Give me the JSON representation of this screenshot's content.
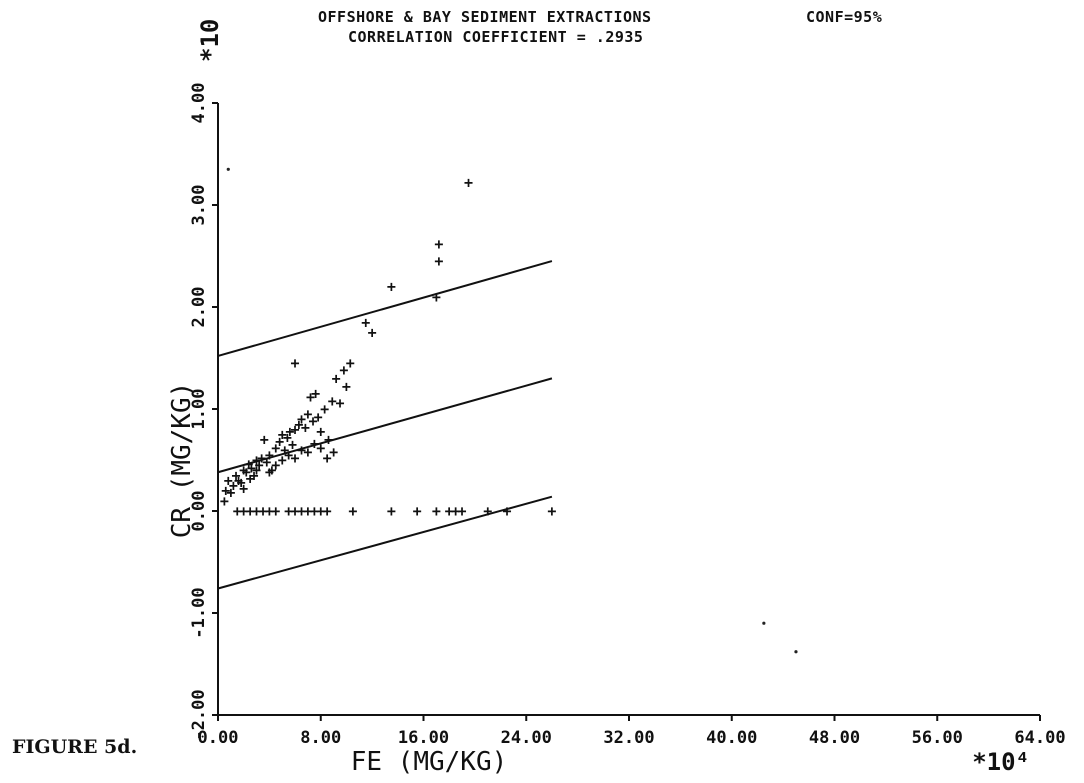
{
  "chart_data": {
    "type": "scatter",
    "title": "OFFSHORE & BAY  SEDIMENT EXTRACTIONS",
    "conf_label": "CONF=95%",
    "subtitle": "CORRELATION COEFFICIENT =  .2935",
    "xlabel": "FE (MG/KG)",
    "ylabel": "CR (MG/KG)",
    "x_multiplier": "*10⁴",
    "y_multiplier": "*10",
    "xlim": [
      0,
      64
    ],
    "ylim": [
      -2,
      4
    ],
    "x_ticks": [
      0,
      8,
      16,
      24,
      32,
      40,
      48,
      56,
      64
    ],
    "x_tick_labels": [
      "0.00",
      "8.00",
      "16.00",
      "24.00",
      "32.00",
      "40.00",
      "48.00",
      "56.00",
      "64.00"
    ],
    "y_ticks": [
      -2,
      -1,
      0,
      1,
      2,
      3,
      4
    ],
    "y_tick_labels": [
      "-2.00",
      "-1.00",
      "0.00",
      "1.00",
      "2.00",
      "3.00",
      "4.00"
    ],
    "grid": false,
    "lines": [
      {
        "name": "upper 95% limit",
        "x": [
          0,
          26
        ],
        "y": [
          1.52,
          2.45
        ]
      },
      {
        "name": "regression",
        "x": [
          0,
          26
        ],
        "y": [
          0.38,
          1.3
        ]
      },
      {
        "name": "lower 95% limit",
        "x": [
          0,
          26
        ],
        "y": [
          -0.76,
          0.14
        ]
      }
    ],
    "points": [
      [
        0.5,
        0.1
      ],
      [
        0.6,
        0.2
      ],
      [
        0.8,
        0.3
      ],
      [
        1.0,
        0.18
      ],
      [
        1.2,
        0.25
      ],
      [
        1.4,
        0.35
      ],
      [
        1.6,
        0.3
      ],
      [
        1.8,
        0.28
      ],
      [
        2.0,
        0.4
      ],
      [
        2.2,
        0.38
      ],
      [
        2.4,
        0.46
      ],
      [
        2.6,
        0.42
      ],
      [
        2.8,
        0.35
      ],
      [
        3.0,
        0.5
      ],
      [
        3.2,
        0.45
      ],
      [
        3.4,
        0.52
      ],
      [
        3.6,
        0.7
      ],
      [
        3.8,
        0.48
      ],
      [
        4.0,
        0.55
      ],
      [
        4.2,
        0.4
      ],
      [
        4.5,
        0.62
      ],
      [
        4.8,
        0.68
      ],
      [
        5.0,
        0.75
      ],
      [
        5.2,
        0.6
      ],
      [
        5.4,
        0.72
      ],
      [
        5.6,
        0.78
      ],
      [
        5.8,
        0.65
      ],
      [
        6.0,
        0.8
      ],
      [
        6.3,
        0.85
      ],
      [
        6.5,
        0.9
      ],
      [
        6.8,
        0.82
      ],
      [
        7.0,
        0.95
      ],
      [
        7.2,
        1.12
      ],
      [
        7.4,
        0.88
      ],
      [
        7.6,
        1.15
      ],
      [
        7.8,
        0.92
      ],
      [
        8.0,
        0.78
      ],
      [
        8.3,
        1.0
      ],
      [
        8.6,
        0.7
      ],
      [
        8.9,
        1.08
      ],
      [
        9.2,
        1.3
      ],
      [
        9.5,
        1.06
      ],
      [
        9.8,
        1.38
      ],
      [
        10.0,
        1.22
      ],
      [
        10.3,
        1.45
      ],
      [
        6.0,
        1.45
      ],
      [
        2.0,
        0.22
      ],
      [
        2.5,
        0.32
      ],
      [
        3.0,
        0.4
      ],
      [
        4.0,
        0.38
      ],
      [
        4.5,
        0.45
      ],
      [
        5.0,
        0.5
      ],
      [
        5.5,
        0.55
      ],
      [
        6.0,
        0.52
      ],
      [
        6.5,
        0.6
      ],
      [
        7.0,
        0.58
      ],
      [
        7.5,
        0.66
      ],
      [
        8.0,
        0.62
      ],
      [
        8.5,
        0.52
      ],
      [
        9.0,
        0.58
      ],
      [
        11.5,
        1.85
      ],
      [
        12.0,
        1.75
      ],
      [
        13.5,
        2.2
      ],
      [
        17.0,
        2.1
      ],
      [
        17.2,
        2.45
      ],
      [
        17.2,
        2.62
      ],
      [
        19.5,
        3.22
      ],
      [
        1.5,
        0.0
      ],
      [
        2.0,
        0.0
      ],
      [
        2.5,
        0.0
      ],
      [
        3.0,
        0.0
      ],
      [
        3.5,
        0.0
      ],
      [
        4.0,
        0.0
      ],
      [
        4.5,
        0.0
      ],
      [
        5.5,
        0.0
      ],
      [
        6.0,
        0.0
      ],
      [
        6.5,
        0.0
      ],
      [
        7.0,
        0.0
      ],
      [
        7.5,
        0.0
      ],
      [
        8.0,
        0.0
      ],
      [
        8.5,
        0.0
      ],
      [
        10.5,
        0.0
      ],
      [
        13.5,
        0.0
      ],
      [
        15.5,
        0.0
      ],
      [
        17.0,
        0.0
      ],
      [
        18.0,
        0.0
      ],
      [
        18.5,
        0.0
      ],
      [
        19.0,
        0.0
      ],
      [
        21.0,
        0.0
      ],
      [
        22.5,
        0.0
      ],
      [
        26.0,
        0.0
      ]
    ],
    "stray_dots": [
      [
        0.8,
        3.35
      ],
      [
        42.5,
        -1.1
      ],
      [
        45.0,
        -1.38
      ]
    ]
  },
  "caption": "FIGURE 5d."
}
